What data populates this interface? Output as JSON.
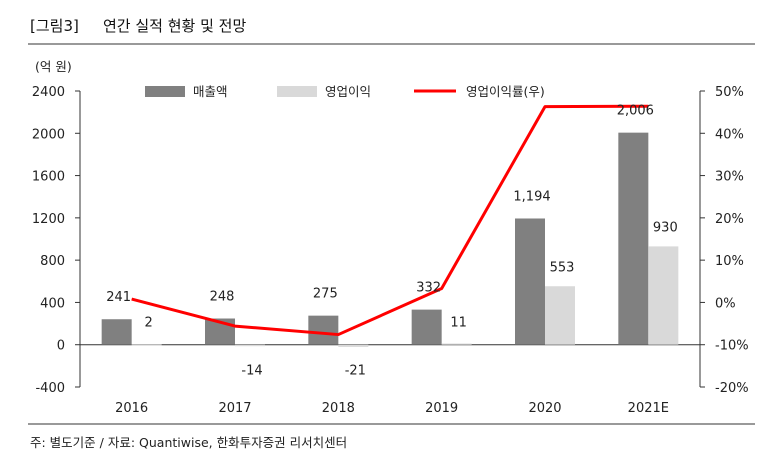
{
  "figure": {
    "label": "[그림3]",
    "title": "연간 실적 현황 및 전망",
    "source": "주: 별도기준 / 자료: Quantiwise, 한화투자증권 리서치센터"
  },
  "chart_data": {
    "type": "bar",
    "title": "연간 실적 현황 및 전망",
    "categories": [
      "2016",
      "2017",
      "2018",
      "2019",
      "2020",
      "2021E"
    ],
    "y_left": {
      "unit_label": "(억 원)",
      "range": [
        -400,
        2400
      ],
      "ticks": [
        "2400",
        "2000",
        "1600",
        "1200",
        "800",
        "400",
        "0",
        "-400"
      ]
    },
    "y_right": {
      "range": [
        -20,
        50
      ],
      "ticks": [
        "50%",
        "40%",
        "30%",
        "20%",
        "10%",
        "0%",
        "-10%",
        "-20%"
      ]
    },
    "series": [
      {
        "name": "매출액",
        "kind": "bar",
        "axis": "left",
        "color": "#808080",
        "values": [
          241,
          248,
          275,
          332,
          1194,
          2006
        ],
        "labels": [
          "241",
          "248",
          "275",
          "332",
          "1,194",
          "2,006"
        ]
      },
      {
        "name": "영업이익",
        "kind": "bar",
        "axis": "left",
        "color": "#d9d9d9",
        "values": [
          2,
          -14,
          -21,
          11,
          553,
          930
        ],
        "labels": [
          "2",
          "-14",
          "-21",
          "11",
          "553",
          "930"
        ]
      },
      {
        "name": "영업이익률(우)",
        "kind": "line",
        "axis": "right",
        "color": "#ff0000",
        "values": [
          0.8,
          -5.6,
          -7.6,
          3.3,
          46.3,
          46.4
        ]
      }
    ],
    "legend_position": "top",
    "grid": false
  }
}
